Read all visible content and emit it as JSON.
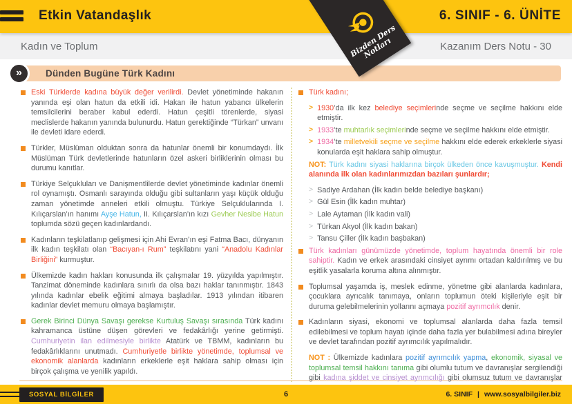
{
  "palette": {
    "brand_yellow": "#fdc40f",
    "brand_dark": "#2b2727",
    "banner_bg": "#f8d0ab",
    "banner_text": "#4c4442",
    "body_text": "#55585b",
    "red": "#ef4a33",
    "pink": "#ee69a3",
    "green": "#4cae50",
    "light_green": "#9ccb52",
    "blue": "#3f8fd8",
    "cyan": "#67c6e4",
    "purple": "#b78fd0",
    "orange": "#f7941d",
    "bullet_orange": "#f28b1f"
  },
  "header": {
    "title": "Etkin Vatandaşlık",
    "unit": "6. SINIF - 6. ÜNİTE"
  },
  "ribbon": {
    "logo": "dart-target-icon",
    "line1": "Bizden Ders",
    "line2": "Notları"
  },
  "subheader": {
    "left": "Kadın ve Toplum",
    "right": "Kazanım Ders Notu - 30"
  },
  "section": {
    "chevron": "»",
    "title": "Dünden Bugüne Türk Kadını"
  },
  "glyphs": {
    "arrow": ">"
  },
  "columns": {
    "left": [
      {
        "kind": "bullet",
        "segs": [
          {
            "t": "Eski Türklerde kadına büyük değer verilirdi. ",
            "c": "red"
          },
          {
            "t": "Devlet yönetiminde hakanın yanında eşi olan hatun da etkili idi. Hakan ile hatun yabancı ülkelerin temsilcilerini beraber kabul ederdi. Hatun çeşitli törenlerde, siyasi meclislerde hakanın yanında bulunurdu. Hatun gerektiğinde “Türkan” unvanı ile devleti idare ederdi."
          }
        ]
      },
      {
        "kind": "bullet",
        "segs": [
          {
            "t": "Türkler, Müslüman olduktan sonra da hatunlar önemli bir konumdaydı. İlk Müslüman Türk devletlerinde hatunların özel askeri birliklerinin olması bu durumu kanıtlar."
          }
        ]
      },
      {
        "kind": "bullet",
        "segs": [
          {
            "t": "Türkiye Selçukluları ve Danişmentlilerde devlet yönetiminde kadınlar önemli rol oynamıştı. Osmanlı sarayında olduğu gibi sultanların yaşı küçük olduğu zaman yönetimde anneleri etkili olmuştu. Türkiye Selçuklularında I. Kılıçarslan’ın hanımı "
          },
          {
            "t": "Ayşe Hatun,",
            "c": "lblue"
          },
          {
            "t": " II. Kılıçarslan’ın kızı "
          },
          {
            "t": "Gevher Nesibe Hatun",
            "c": "lgreen"
          },
          {
            "t": " toplumda sözü geçen kadınlardandı."
          }
        ]
      },
      {
        "kind": "bullet",
        "segs": [
          {
            "t": "Kadınların teşkilatlanıp gelişmesi için Ahi Evran’ın eşi Fatma Bacı, dünyanın ilk kadın teşkilatı olan "
          },
          {
            "t": "“Bacıyan-ı Rum”",
            "c": "red"
          },
          {
            "t": " teşkilatını yani "
          },
          {
            "t": "“Anadolu Kadınlar Birliğini”",
            "c": "red"
          },
          {
            "t": " kurmuştur."
          }
        ]
      },
      {
        "kind": "bullet",
        "segs": [
          {
            "t": "Ülkemizde kadın hakları konusunda ilk çalışmalar 19. yüzyılda yapılmıştır. Tanzimat döneminde kadınlara sınırlı da olsa bazı haklar tanınmıştır. 1843 yılında kadınlar ebelik eğitimi almaya başladılar. 1913 yılından itibaren kadınlar devlet memuru olmaya başlamıştır."
          }
        ]
      },
      {
        "kind": "bullet",
        "segs": [
          {
            "t": "Gerek Birinci Dünya Savaşı gerekse Kurtuluş Savaşı sırasında ",
            "c": "green"
          },
          {
            "t": "Türk kadını kahramanca üstüne düşen görevleri ve fedakârlığı yerine getirmişti. "
          },
          {
            "t": "Cumhuriyetin ilan edilmesiyle birlikte ",
            "c": "purple"
          },
          {
            "t": "Atatürk ve TBMM, kadınların bu fedakârlıklarını unutmadı. "
          },
          {
            "t": "Cumhuriyetle birlikte yönetimde, toplumsal ve ekonomik alanlarda ",
            "c": "red"
          },
          {
            "t": "kadınların erkeklerle eşit haklara sahip olması için birçok çalışma ve yenilik yapıldı."
          }
        ]
      },
      {
        "kind": "note",
        "segs": [
          {
            "t": "NOT : ",
            "c": "orange-b"
          },
          {
            "t": "Kadınlar, "
          },
          {
            "t": "Medeni Kanun",
            "c": "red"
          },
          {
            "t": "’la (1926) meslek, mülkiyet edinme, boşanma, mirastan eşit pay alma, şahitlik gibi toplumsal ve ekonomik konularda erkeklerle eşit haklar elde etmiştir."
          }
        ]
      }
    ],
    "right": [
      {
        "kind": "bullet",
        "segs": [
          {
            "t": "Türk kadını;",
            "c": "red"
          }
        ]
      },
      {
        "kind": "arrow",
        "segs": [
          {
            "t": "1930",
            "c": "red"
          },
          {
            "t": "’da ilk kez "
          },
          {
            "t": "belediye seçimleri",
            "c": "red"
          },
          {
            "t": "nde seçme ve seçilme hakkını elde etmiştir."
          }
        ]
      },
      {
        "kind": "arrow",
        "segs": [
          {
            "t": "1933",
            "c": "pink"
          },
          {
            "t": "’te "
          },
          {
            "t": "muhtarlık seçimleri",
            "c": "lgreen"
          },
          {
            "t": "nde seçme ve seçilme hakkını elde etmiştir."
          }
        ]
      },
      {
        "kind": "arrow",
        "segs": [
          {
            "t": "1934",
            "c": "pink"
          },
          {
            "t": "’te "
          },
          {
            "t": "milletvekili seçme ve seçilme",
            "c": "orange"
          },
          {
            "t": " hakkını elde ederek erkeklerle siyasi konularda eşit haklara sahip olmuştur."
          }
        ]
      },
      {
        "kind": "note",
        "segs": [
          {
            "t": "NOT: ",
            "c": "orange-b"
          },
          {
            "t": "Türk kadını siyasi haklarına birçok ülkeden önce kavuşmuştur. ",
            "c": "cyan"
          },
          {
            "t": "Kendi alanında ilk olan kadınlarımızdan bazıları şunlardır;",
            "c": "red-b"
          }
        ]
      },
      {
        "kind": "arrow-gray",
        "segs": [
          {
            "t": "Sadiye Ardahan (İlk kadın belde belediye başkanı)"
          }
        ]
      },
      {
        "kind": "arrow-gray",
        "segs": [
          {
            "t": "Gül Esin (İlk kadın muhtar)"
          }
        ]
      },
      {
        "kind": "arrow-gray",
        "segs": [
          {
            "t": "Lale Aytaman (İlk kadın vali)"
          }
        ]
      },
      {
        "kind": "arrow-gray",
        "segs": [
          {
            "t": "Türkan Akyol (İlk kadın bakan)"
          }
        ]
      },
      {
        "kind": "arrow-gray",
        "segs": [
          {
            "t": "Tansu Çiller (İlk kadın başbakan)"
          }
        ]
      },
      {
        "kind": "bullet",
        "segs": [
          {
            "t": "Türk kadınları günümüzde yönetimde, toplum hayatında önemli bir role sahiptir. ",
            "c": "pink"
          },
          {
            "t": "Kadın ve erkek arasındaki cinsiyet ayrımı ortadan kaldırılmış ve bu eşitlik yasalarla koruma altına alınmıştır."
          }
        ]
      },
      {
        "kind": "bullet",
        "segs": [
          {
            "t": "Toplumsal yaşamda iş, meslek edinme, yönetme gibi alanlarda kadınlara, çocuklara ayrıcalık tanımaya, onların toplumun öteki kişileriyle eşit bir duruma gelebilmelerinin yollarını açmaya "
          },
          {
            "t": "pozitif ayrımcılık",
            "c": "pink"
          },
          {
            "t": " denir."
          }
        ]
      },
      {
        "kind": "bullet",
        "segs": [
          {
            "t": "Kadınların siyasi, ekonomi ve toplumsal alanlarda daha fazla temsil edilebilmesi ve toplum hayatı içinde daha fazla yer bulabilmesi adına bireyler ve devlet tarafından pozitif ayrımcılık yapılmalıdır."
          }
        ]
      },
      {
        "kind": "note",
        "segs": [
          {
            "t": "NOT : ",
            "c": "orange-b"
          },
          {
            "t": "Ülkemizde kadınlara "
          },
          {
            "t": "pozitif ayrımcılık yapma",
            "c": "blue"
          },
          {
            "t": ", "
          },
          {
            "t": "ekonomik, siyasal ve toplumsal temsil hakkını tanıma",
            "c": "green"
          },
          {
            "t": " gibi olumlu tutum ve davranışlar sergilendiği gibi "
          },
          {
            "t": "kadına şiddet ve cinsiyet ayrımcılığı",
            "c": "purple"
          },
          {
            "t": " gibi olumsuz tutum ve davranışlar sergileyen kişiler de görülmektedir. Hem bireyler hem de devlet kadınlara yönelik olumlu tutum ve davranışların arttırılmasını sağlamalı, şiddet ve cinsiyet ayrımcılığı gibi olumsuz tutum ve davranışların yok edilmesi için çaba göstermelidir."
          }
        ]
      }
    ]
  },
  "footer": {
    "badge": "SOSYAL BİLGİLER",
    "page": "6",
    "grade": "6. SINIF",
    "separator": "|",
    "site": "www.sosyalbilgiler.biz"
  }
}
